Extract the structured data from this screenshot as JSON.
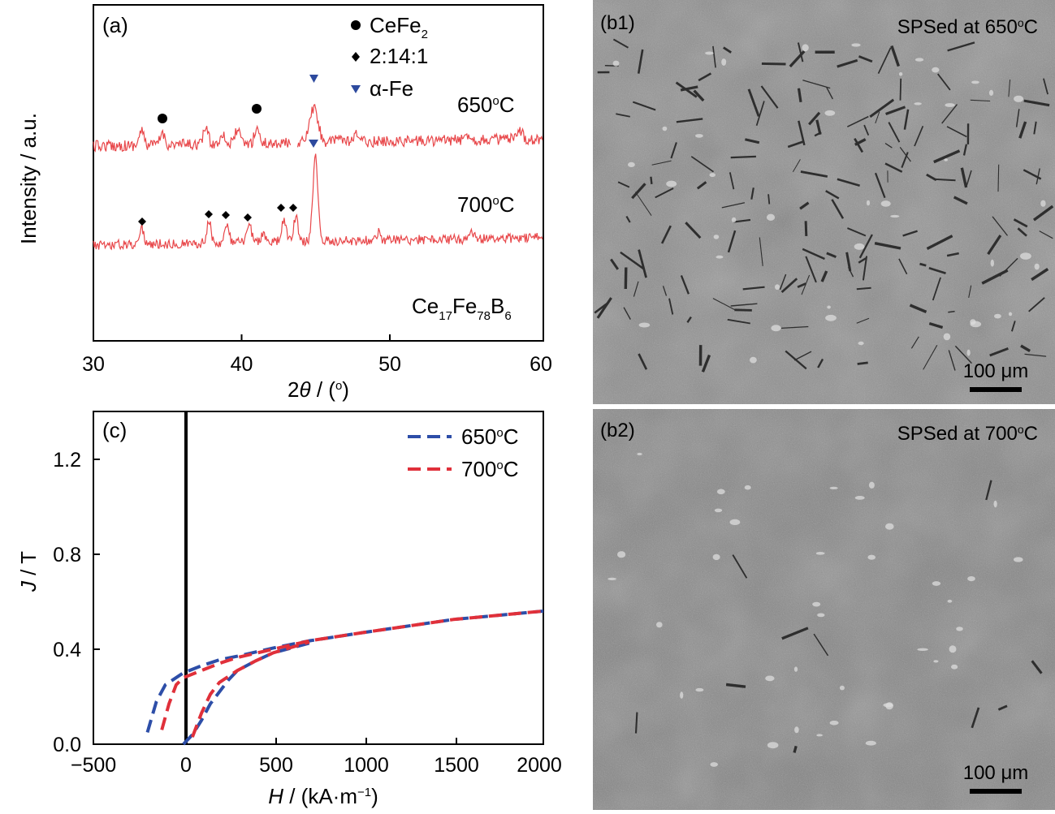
{
  "xrd": {
    "panel": "(a)",
    "xlabel": "2",
    "xlabel_theta": "θ",
    "xlabel_unit": " / (",
    "xlabel_unit_sup": "o",
    "xlabel_end": ")",
    "ylabel": "Intensity / a.u.",
    "xlim": [
      30,
      60
    ],
    "xticks": [
      "30",
      "40",
      "50",
      "60"
    ],
    "legend": [
      {
        "marker": "circle",
        "text": "CeFe",
        "sub": "2",
        "color": "#000000"
      },
      {
        "marker": "diamond",
        "text": "2:14:1",
        "sub": "",
        "color": "#000000"
      },
      {
        "marker": "triangle",
        "text": "α-Fe",
        "sub": "",
        "color": "#2d4a9e"
      }
    ],
    "series": [
      {
        "name": "650",
        "unit_sup": "o",
        "unit": "C",
        "color": "#e8474a"
      },
      {
        "name": "700",
        "unit_sup": "o",
        "unit": "C",
        "color": "#e8474a"
      }
    ],
    "composition": {
      "el1": "Ce",
      "n1": "17",
      "el2": "Fe",
      "n2": "78",
      "el3": "B",
      "n3": "6"
    }
  },
  "hyst": {
    "panel": "(c)",
    "ylabel_italic": "J",
    "ylabel_rest": " / T",
    "xlabel_italic": "H",
    "xlabel_rest": " / (kA·m",
    "xlabel_sup": "−1",
    "xlabel_end": ")",
    "xlim": [
      -500,
      2000
    ],
    "ylim": [
      0.0,
      1.4
    ],
    "xticks": [
      "−500",
      "0",
      "500",
      "1000",
      "1500",
      "2000"
    ],
    "yticks": [
      "0.0",
      "0.4",
      "0.8",
      "1.2"
    ],
    "legend": [
      {
        "name": "650",
        "unit_sup": "o",
        "unit": "C",
        "color": "#2d4ea8"
      },
      {
        "name": "700",
        "unit_sup": "o",
        "unit": "C",
        "color": "#e0303a"
      }
    ]
  },
  "sem": [
    {
      "panel": "(b1)",
      "label": "SPSed at 650",
      "sup": "o",
      "unit": "C",
      "scale": "100 μm"
    },
    {
      "panel": "(b2)",
      "label": "SPSed at 700",
      "sup": "o",
      "unit": "C",
      "scale": "100 μm"
    }
  ],
  "chart_data": [
    {
      "type": "line",
      "title": "",
      "xlabel": "2θ / (°)",
      "ylabel": "Intensity / a.u.",
      "xlim": [
        30,
        60
      ],
      "series": [
        {
          "name": "650°C",
          "peaks_2theta": [
            34.6,
            40.9,
            44.7
          ],
          "peak_phases": [
            "CeFe2",
            "CeFe2",
            "α-Fe"
          ]
        },
        {
          "name": "700°C",
          "peaks_2theta": [
            33.2,
            37.7,
            38.9,
            40.4,
            42.7,
            43.5,
            44.8
          ],
          "peak_phases": [
            "2:14:1",
            "2:14:1",
            "2:14:1",
            "2:14:1",
            "2:14:1",
            "2:14:1",
            "α-Fe"
          ]
        }
      ],
      "annotations": [
        "Ce17Fe78B6"
      ]
    },
    {
      "type": "line",
      "title": "",
      "xlabel": "H / (kA·m−1)",
      "ylabel": "J / T",
      "xlim": [
        -500,
        2000
      ],
      "ylim": [
        0.0,
        1.4
      ],
      "series": [
        {
          "name": "650°C",
          "upper": [
            [
              -200,
              0.05
            ],
            [
              -150,
              0.18
            ],
            [
              -100,
              0.25
            ],
            [
              0,
              0.3
            ],
            [
              100,
              0.33
            ],
            [
              200,
              0.355
            ],
            [
              300,
              0.37
            ],
            [
              500,
              0.405
            ],
            [
              700,
              0.435
            ],
            [
              1000,
              0.47
            ],
            [
              1500,
              0.525
            ],
            [
              2000,
              0.56
            ]
          ],
          "lower": [
            [
              0,
              0.0
            ],
            [
              50,
              0.04
            ],
            [
              100,
              0.1
            ],
            [
              150,
              0.17
            ],
            [
              200,
              0.22
            ],
            [
              250,
              0.27
            ],
            [
              300,
              0.31
            ],
            [
              400,
              0.35
            ],
            [
              500,
              0.385
            ],
            [
              700,
              0.425
            ]
          ]
        },
        {
          "name": "700°C",
          "upper": [
            [
              -120,
              0.06
            ],
            [
              -80,
              0.17
            ],
            [
              -40,
              0.25
            ],
            [
              0,
              0.28
            ],
            [
              100,
              0.31
            ],
            [
              200,
              0.34
            ],
            [
              300,
              0.365
            ],
            [
              500,
              0.4
            ],
            [
              700,
              0.435
            ],
            [
              1000,
              0.47
            ],
            [
              1500,
              0.525
            ],
            [
              2000,
              0.56
            ]
          ],
          "lower": [
            [
              50,
              0.03
            ],
            [
              100,
              0.13
            ],
            [
              150,
              0.21
            ],
            [
              200,
              0.26
            ],
            [
              300,
              0.31
            ],
            [
              400,
              0.35
            ],
            [
              500,
              0.385
            ],
            [
              700,
              0.43
            ]
          ]
        }
      ]
    }
  ]
}
